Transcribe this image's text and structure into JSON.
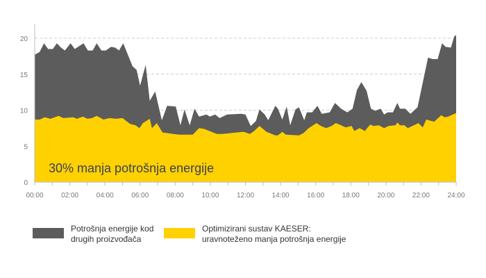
{
  "chart_data": {
    "type": "area",
    "annotation": "30% manja potrošnja energije",
    "xlim": [
      0,
      24
    ],
    "ylim": [
      0,
      20
    ],
    "x_ticks": [
      "00:00",
      "02:00",
      "04:00",
      "06:00",
      "08:00",
      "10:00",
      "12:00",
      "14:00",
      "16:00",
      "18:00",
      "20:00",
      "22:00",
      "24:00"
    ],
    "y_ticks": [
      "0",
      "5",
      "10",
      "15",
      "20"
    ],
    "grid": "horizontal dashed",
    "legend_placement": "bottom",
    "series": [
      {
        "name": "Potrošnja energije kod\ndrugih proizvođača",
        "color": "#5c5c5c",
        "points": [
          [
            0,
            17.7
          ],
          [
            0.28,
            18.1
          ],
          [
            0.53,
            19.3
          ],
          [
            0.76,
            18.5
          ],
          [
            1.03,
            18.5
          ],
          [
            1.26,
            19.3
          ],
          [
            1.5,
            18.7
          ],
          [
            1.72,
            18.3
          ],
          [
            2.04,
            19.3
          ],
          [
            2.28,
            18.5
          ],
          [
            2.78,
            19.3
          ],
          [
            3.03,
            18.3
          ],
          [
            3.3,
            18.3
          ],
          [
            3.53,
            19.3
          ],
          [
            3.8,
            18.3
          ],
          [
            4.05,
            18.3
          ],
          [
            4.35,
            18.8
          ],
          [
            4.58,
            18.7
          ],
          [
            4.8,
            18.3
          ],
          [
            5.04,
            19.3
          ],
          [
            5.57,
            16.1
          ],
          [
            5.8,
            15.6
          ],
          [
            6.0,
            13.4
          ],
          [
            6.32,
            16.3
          ],
          [
            6.55,
            11.3
          ],
          [
            6.86,
            12.6
          ],
          [
            7.24,
            8.6
          ],
          [
            7.54,
            10.6
          ],
          [
            8.03,
            10.5
          ],
          [
            8.3,
            7.9
          ],
          [
            8.53,
            10.1
          ],
          [
            8.83,
            7.9
          ],
          [
            9.1,
            10.2
          ],
          [
            9.36,
            9.1
          ],
          [
            9.78,
            9.4
          ],
          [
            9.97,
            9.1
          ],
          [
            10.28,
            9.4
          ],
          [
            10.53,
            8.9
          ],
          [
            10.96,
            9.4
          ],
          [
            11.75,
            9.5
          ],
          [
            12.0,
            9.4
          ],
          [
            12.3,
            7.8
          ],
          [
            12.6,
            8.5
          ],
          [
            12.8,
            10.1
          ],
          [
            13.1,
            9.4
          ],
          [
            13.3,
            8.6
          ],
          [
            13.7,
            10.6
          ],
          [
            13.85,
            10.2
          ],
          [
            14.1,
            8.7
          ],
          [
            14.35,
            10.5
          ],
          [
            14.55,
            7.9
          ],
          [
            14.85,
            10.1
          ],
          [
            15.05,
            10.4
          ],
          [
            15.35,
            8.6
          ],
          [
            15.5,
            9.7
          ],
          [
            15.8,
            9.7
          ],
          [
            16.1,
            10.6
          ],
          [
            16.35,
            9.5
          ],
          [
            16.8,
            9.7
          ],
          [
            17.1,
            11.0
          ],
          [
            17.45,
            10.2
          ],
          [
            17.8,
            9.7
          ],
          [
            18.1,
            10.2
          ],
          [
            18.35,
            12.8
          ],
          [
            18.6,
            13.9
          ],
          [
            18.9,
            12.7
          ],
          [
            19.15,
            10.2
          ],
          [
            19.4,
            9.9
          ],
          [
            19.7,
            10.2
          ],
          [
            19.9,
            9.4
          ],
          [
            20.1,
            9.7
          ],
          [
            20.4,
            9.7
          ],
          [
            20.65,
            11.0
          ],
          [
            20.8,
            10.2
          ],
          [
            21.1,
            10.2
          ],
          [
            21.4,
            9.5
          ],
          [
            21.8,
            10.4
          ],
          [
            22.4,
            17.3
          ],
          [
            22.65,
            17.1
          ],
          [
            22.95,
            17.1
          ],
          [
            23.2,
            19.3
          ],
          [
            23.4,
            18.8
          ],
          [
            23.7,
            18.7
          ],
          [
            23.9,
            20.3
          ],
          [
            24.0,
            20.4
          ]
        ]
      },
      {
        "name": "Optimizirani sustav KAESER:\nuravnoteženo manja potrošnja energije",
        "color": "#ffd100",
        "points": [
          [
            0,
            8.7
          ],
          [
            0.28,
            8.7
          ],
          [
            0.57,
            9.0
          ],
          [
            0.9,
            8.8
          ],
          [
            1.36,
            9.2
          ],
          [
            1.62,
            8.9
          ],
          [
            2.2,
            9.0
          ],
          [
            2.4,
            8.8
          ],
          [
            2.74,
            9.1
          ],
          [
            3.0,
            8.8
          ],
          [
            3.26,
            8.9
          ],
          [
            3.53,
            9.2
          ],
          [
            3.92,
            8.7
          ],
          [
            4.25,
            8.9
          ],
          [
            4.64,
            8.8
          ],
          [
            5.0,
            8.9
          ],
          [
            5.43,
            8.1
          ],
          [
            5.74,
            7.9
          ],
          [
            5.96,
            7.5
          ],
          [
            6.16,
            8.2
          ],
          [
            6.55,
            8.8
          ],
          [
            6.68,
            7.5
          ],
          [
            6.95,
            8.2
          ],
          [
            7.28,
            6.9
          ],
          [
            8.2,
            6.6
          ],
          [
            9.0,
            6.6
          ],
          [
            9.36,
            7.5
          ],
          [
            9.64,
            7.4
          ],
          [
            10.37,
            6.7
          ],
          [
            10.7,
            6.7
          ],
          [
            11.5,
            6.9
          ],
          [
            11.9,
            7.0
          ],
          [
            12.25,
            6.7
          ],
          [
            12.5,
            7.1
          ],
          [
            12.8,
            7.8
          ],
          [
            13.2,
            7.0
          ],
          [
            13.7,
            6.5
          ],
          [
            13.85,
            6.5
          ],
          [
            14.1,
            7.0
          ],
          [
            14.3,
            6.6
          ],
          [
            15.05,
            6.5
          ],
          [
            15.3,
            6.8
          ],
          [
            15.6,
            7.5
          ],
          [
            16.05,
            8.2
          ],
          [
            16.3,
            7.8
          ],
          [
            16.6,
            7.5
          ],
          [
            16.9,
            7.8
          ],
          [
            17.15,
            8.2
          ],
          [
            17.45,
            7.9
          ],
          [
            17.7,
            7.6
          ],
          [
            18.05,
            7.8
          ],
          [
            18.2,
            7.1
          ],
          [
            18.5,
            7.5
          ],
          [
            18.8,
            7.1
          ],
          [
            19.1,
            8.0
          ],
          [
            19.3,
            7.8
          ],
          [
            19.6,
            7.9
          ],
          [
            19.9,
            7.5
          ],
          [
            20.15,
            7.8
          ],
          [
            20.55,
            7.9
          ],
          [
            20.65,
            8.3
          ],
          [
            20.8,
            7.9
          ],
          [
            21.05,
            7.9
          ],
          [
            21.25,
            7.5
          ],
          [
            21.85,
            8.2
          ],
          [
            22.1,
            7.6
          ],
          [
            22.3,
            8.7
          ],
          [
            22.75,
            8.4
          ],
          [
            23.15,
            9.3
          ],
          [
            23.35,
            9.0
          ],
          [
            23.55,
            9.1
          ],
          [
            23.9,
            9.5
          ],
          [
            24.0,
            9.6
          ]
        ]
      }
    ]
  },
  "colors": {
    "annotation": "#3b4256",
    "grid": "#cccccc",
    "axis": "#bbbbbb"
  }
}
